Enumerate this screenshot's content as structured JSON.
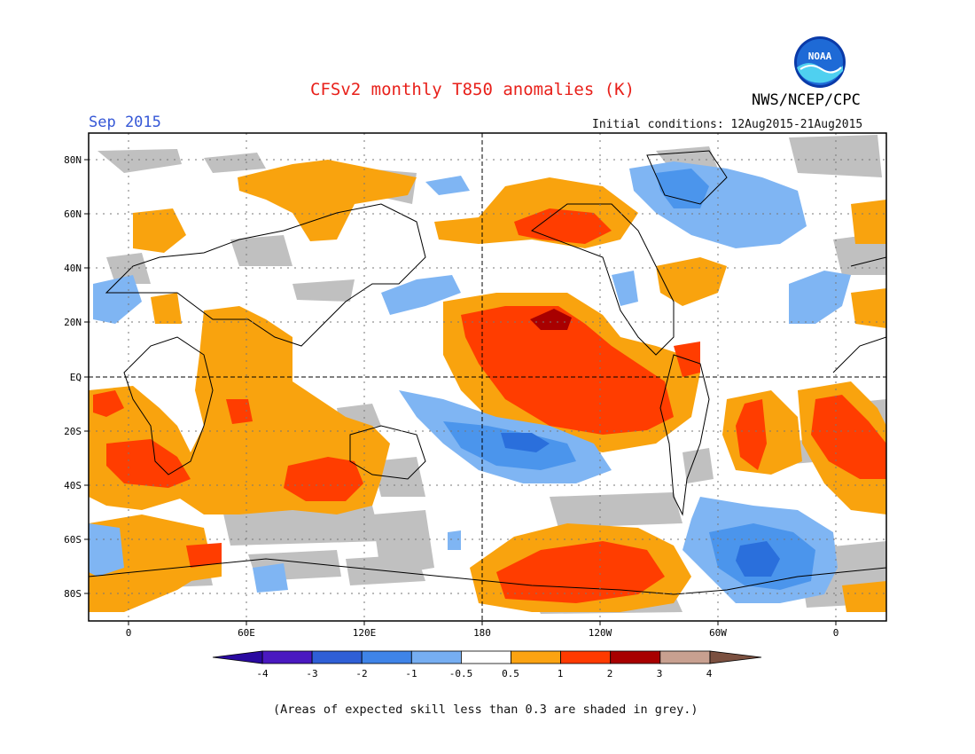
{
  "header": {
    "title": "CFSv2 monthly T850 anomalies (K)",
    "agency": "NWS/NCEP/CPC",
    "month": "Sep 2015",
    "initial_conditions": "Initial conditions: 12Aug2015-21Aug2015",
    "logo_text": "NOAA"
  },
  "map": {
    "lat_labels": [
      "80N",
      "60N",
      "40N",
      "20N",
      "EQ",
      "20S",
      "40S",
      "60S",
      "80S"
    ],
    "lon_labels": [
      "0",
      "60E",
      "120E",
      "180",
      "120W",
      "60W",
      "0"
    ],
    "colors": {
      "neg4": "#2a0ab0",
      "neg3": "#4a3fcf",
      "neg2": "#2a6fdc",
      "neg1": "#4b95ec",
      "neg05": "#7fb5f3",
      "neutral": "#ffffff",
      "pos05": "#f9a30e",
      "pos1": "#ff3f00",
      "pos2": "#ff2d00",
      "pos3": "#a80000",
      "pos4": "#c8a090",
      "grey": "#c0c0c0"
    }
  },
  "colorbar": {
    "labels": [
      "-4",
      "-3",
      "-2",
      "-1",
      "-0.5",
      "0.5",
      "1",
      "2",
      "3",
      "4"
    ],
    "colors": [
      "#4a19c0",
      "#2f5fd6",
      "#3f84e8",
      "#76aef2",
      "#ffffff",
      "#fba312",
      "#ff3a00",
      "#a80000",
      "#c8a090"
    ],
    "end_low": "#2a0aa0",
    "end_high": "#7b5040"
  },
  "footnote": "(Areas of expected skill less than 0.3 are shaded in grey.)"
}
